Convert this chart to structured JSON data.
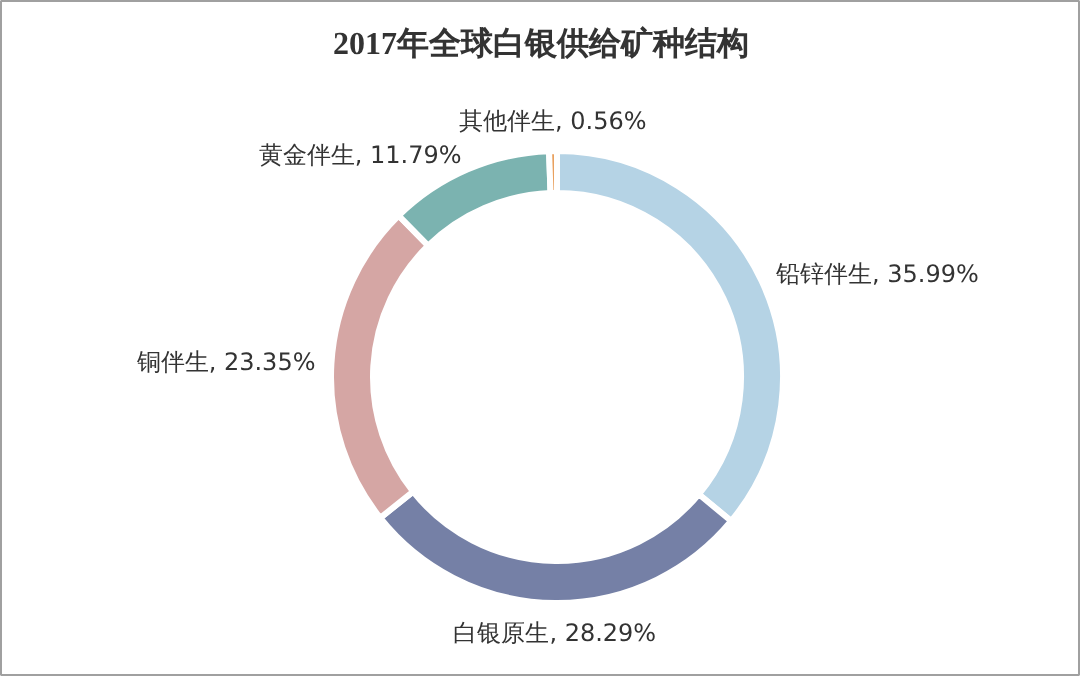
{
  "chart_data": {
    "type": "donut",
    "title": "2017年全球白银供给矿种结构",
    "categories": [
      "铅锌伴生",
      "白银原生",
      "铜伴生",
      "黄金伴生",
      "其他伴生"
    ],
    "values": [
      35.99,
      28.29,
      23.35,
      11.79,
      0.56
    ],
    "value_labels": [
      "35.99%",
      "28.29%",
      "23.35%",
      "11.79%",
      "0.56%"
    ],
    "colors": [
      "#b5d3e5",
      "#7580a6",
      "#d5a6a4",
      "#7bb3b0",
      "#e9a15f"
    ]
  }
}
